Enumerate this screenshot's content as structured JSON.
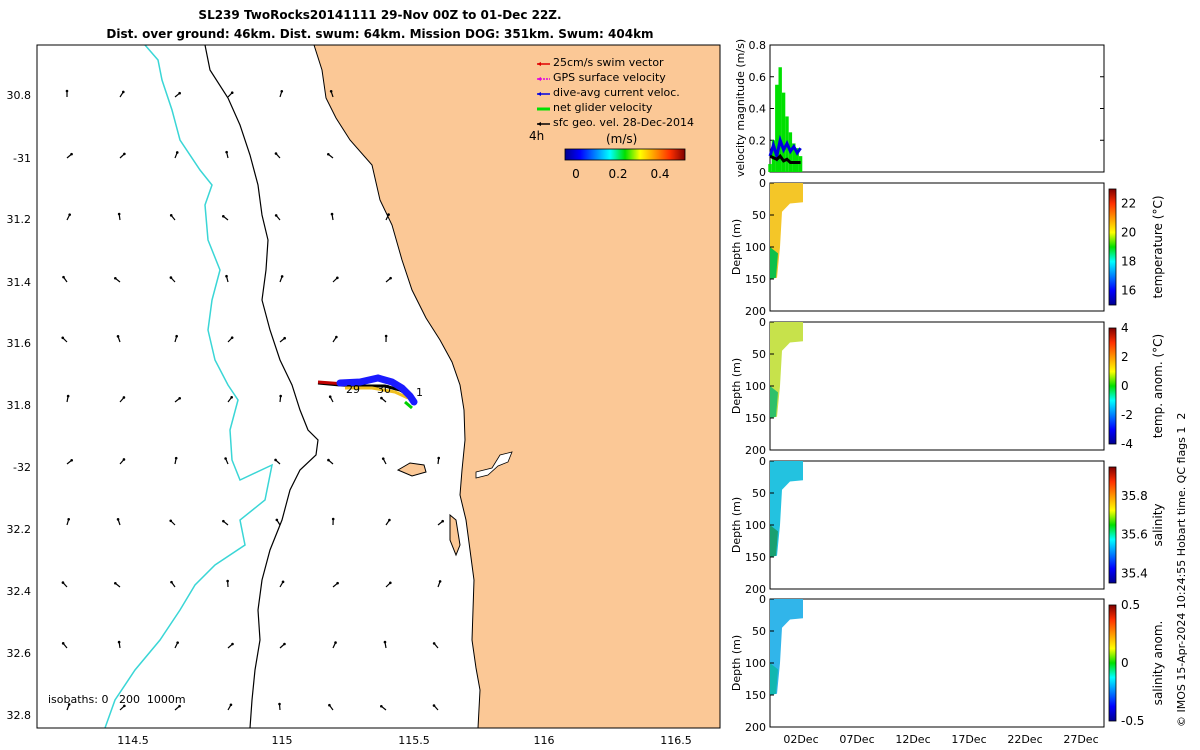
{
  "title": {
    "line1": "SL239 TwoRocks20141111 29-Nov 00Z to 01-Dec 22Z.",
    "line2": "Dist. over ground: 46km. Dist. swum: 64km. Mission DOG: 351km. Swum: 404km"
  },
  "map": {
    "lon_ticks": [
      "114.5",
      "115",
      "115.5",
      "116",
      "116.5"
    ],
    "lat_ticks": [
      "30.8",
      "-31",
      "31.2",
      "31.4",
      "31.6",
      "31.8",
      "-32",
      "32.2",
      "32.4",
      "32.6",
      "32.8"
    ],
    "legend": [
      {
        "label": "25cm/s swim vector",
        "color": "#e00000"
      },
      {
        "label": "GPS surface velocity",
        "color": "#e000e0"
      },
      {
        "label": "dive-avg current veloc.",
        "color": "#0000e0"
      },
      {
        "label": "net glider velocity",
        "color": "#00e000"
      },
      {
        "label": "sfc geo. vel. 28-Dec-2014",
        "color": "#000000"
      }
    ],
    "time_label": "4h",
    "colorbar_label": "(m/s)",
    "colorbar_ticks": [
      "0",
      "0.2",
      "0.4"
    ],
    "track_labels": [
      "29",
      "30",
      "1"
    ],
    "isobaths_label": "isobaths: 0   200  1000m",
    "land_color": "#fbc896",
    "isobath_200_color": "#3ad6d6"
  },
  "chart_data": [
    {
      "type": "line",
      "title": "velocity magnitude",
      "ylabel": "velocity magnitude (m/s)",
      "ylim": [
        0,
        0.8
      ],
      "yticks": [
        "0",
        "0.2",
        "0.4",
        "0.6",
        "0.8"
      ],
      "series": [
        {
          "name": "net glider velocity",
          "color": "#00e000",
          "values": [
            0.05,
            0.2,
            0.55,
            0.66,
            0.5,
            0.35,
            0.25,
            0.18,
            0.15,
            0.1
          ]
        },
        {
          "name": "dive-avg current veloc.",
          "color": "#0000e0",
          "values": [
            0.1,
            0.17,
            0.1,
            0.2,
            0.14,
            0.18,
            0.13,
            0.16,
            0.12,
            0.15
          ]
        },
        {
          "name": "sfc geo. vel.",
          "color": "#000000",
          "values": [
            0.1,
            0.09,
            0.08,
            0.1,
            0.07,
            0.08,
            0.06,
            0.06,
            0.06,
            0.06
          ]
        }
      ]
    },
    {
      "type": "heatmap",
      "ylabel": "Depth (m)",
      "yticks": [
        "0",
        "50",
        "100",
        "150",
        "200"
      ],
      "colorbar_label": "temperature (°C)",
      "colorbar_ticks": [
        "22",
        "20",
        "18",
        "16"
      ],
      "clim": [
        15,
        23
      ]
    },
    {
      "type": "heatmap",
      "ylabel": "Depth (m)",
      "yticks": [
        "0",
        "50",
        "100",
        "150",
        "200"
      ],
      "colorbar_label": "temp. anom. (°C)",
      "colorbar_ticks": [
        "4",
        "2",
        "0",
        "-2",
        "-4"
      ],
      "clim": [
        -4,
        4
      ]
    },
    {
      "type": "heatmap",
      "ylabel": "Depth (m)",
      "yticks": [
        "0",
        "50",
        "100",
        "150",
        "200"
      ],
      "colorbar_label": "salinity",
      "colorbar_ticks": [
        "35.8",
        "35.6",
        "35.4"
      ],
      "clim": [
        35.35,
        35.95
      ]
    },
    {
      "type": "heatmap",
      "ylabel": "Depth (m)",
      "yticks": [
        "0",
        "50",
        "100",
        "150",
        "200"
      ],
      "colorbar_label": "salinity anom.",
      "colorbar_ticks": [
        "0.5",
        "0",
        "-0.5"
      ],
      "clim": [
        -0.5,
        0.5
      ]
    }
  ],
  "time_axis": {
    "ticks": [
      "02Dec",
      "07Dec",
      "12Dec",
      "17Dec",
      "22Dec",
      "27Dec"
    ]
  },
  "footer": {
    "credit": "© IMOS 15-Apr-2024 10:24:55 Hobart time. QC flags 1  2"
  }
}
